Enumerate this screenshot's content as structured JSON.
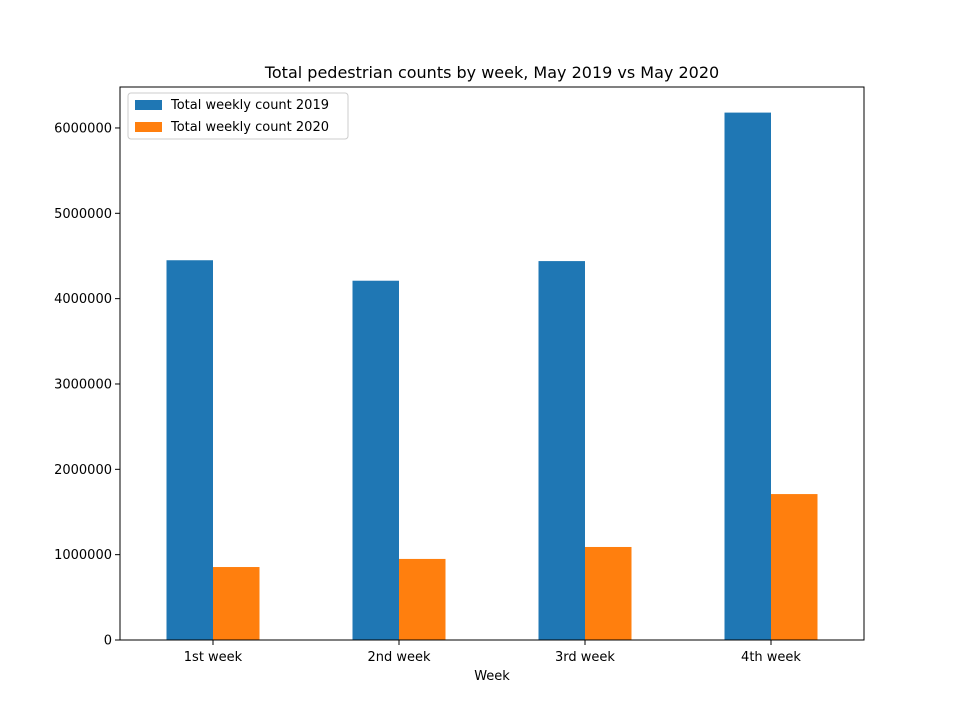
{
  "chart_data": {
    "type": "bar",
    "title": "Total pedestrian counts by week, May 2019 vs May 2020",
    "xlabel": "Week",
    "ylabel": "",
    "categories": [
      "1st week",
      "2nd week",
      "3rd week",
      "4th week"
    ],
    "series": [
      {
        "name": "Total weekly count 2019",
        "color": "#1f77b4",
        "values": [
          4450000,
          4210000,
          4440000,
          6180000
        ]
      },
      {
        "name": "Total weekly count 2020",
        "color": "#ff7f0e",
        "values": [
          855000,
          950000,
          1090000,
          1710000
        ]
      }
    ],
    "ylim": [
      0,
      6480000
    ],
    "yticks": [
      0,
      1000000,
      2000000,
      3000000,
      4000000,
      5000000,
      6000000
    ],
    "ytick_labels": [
      "0",
      "1000000",
      "2000000",
      "3000000",
      "4000000",
      "5000000",
      "6000000"
    ],
    "grid": false,
    "legend_position": "top-left"
  }
}
